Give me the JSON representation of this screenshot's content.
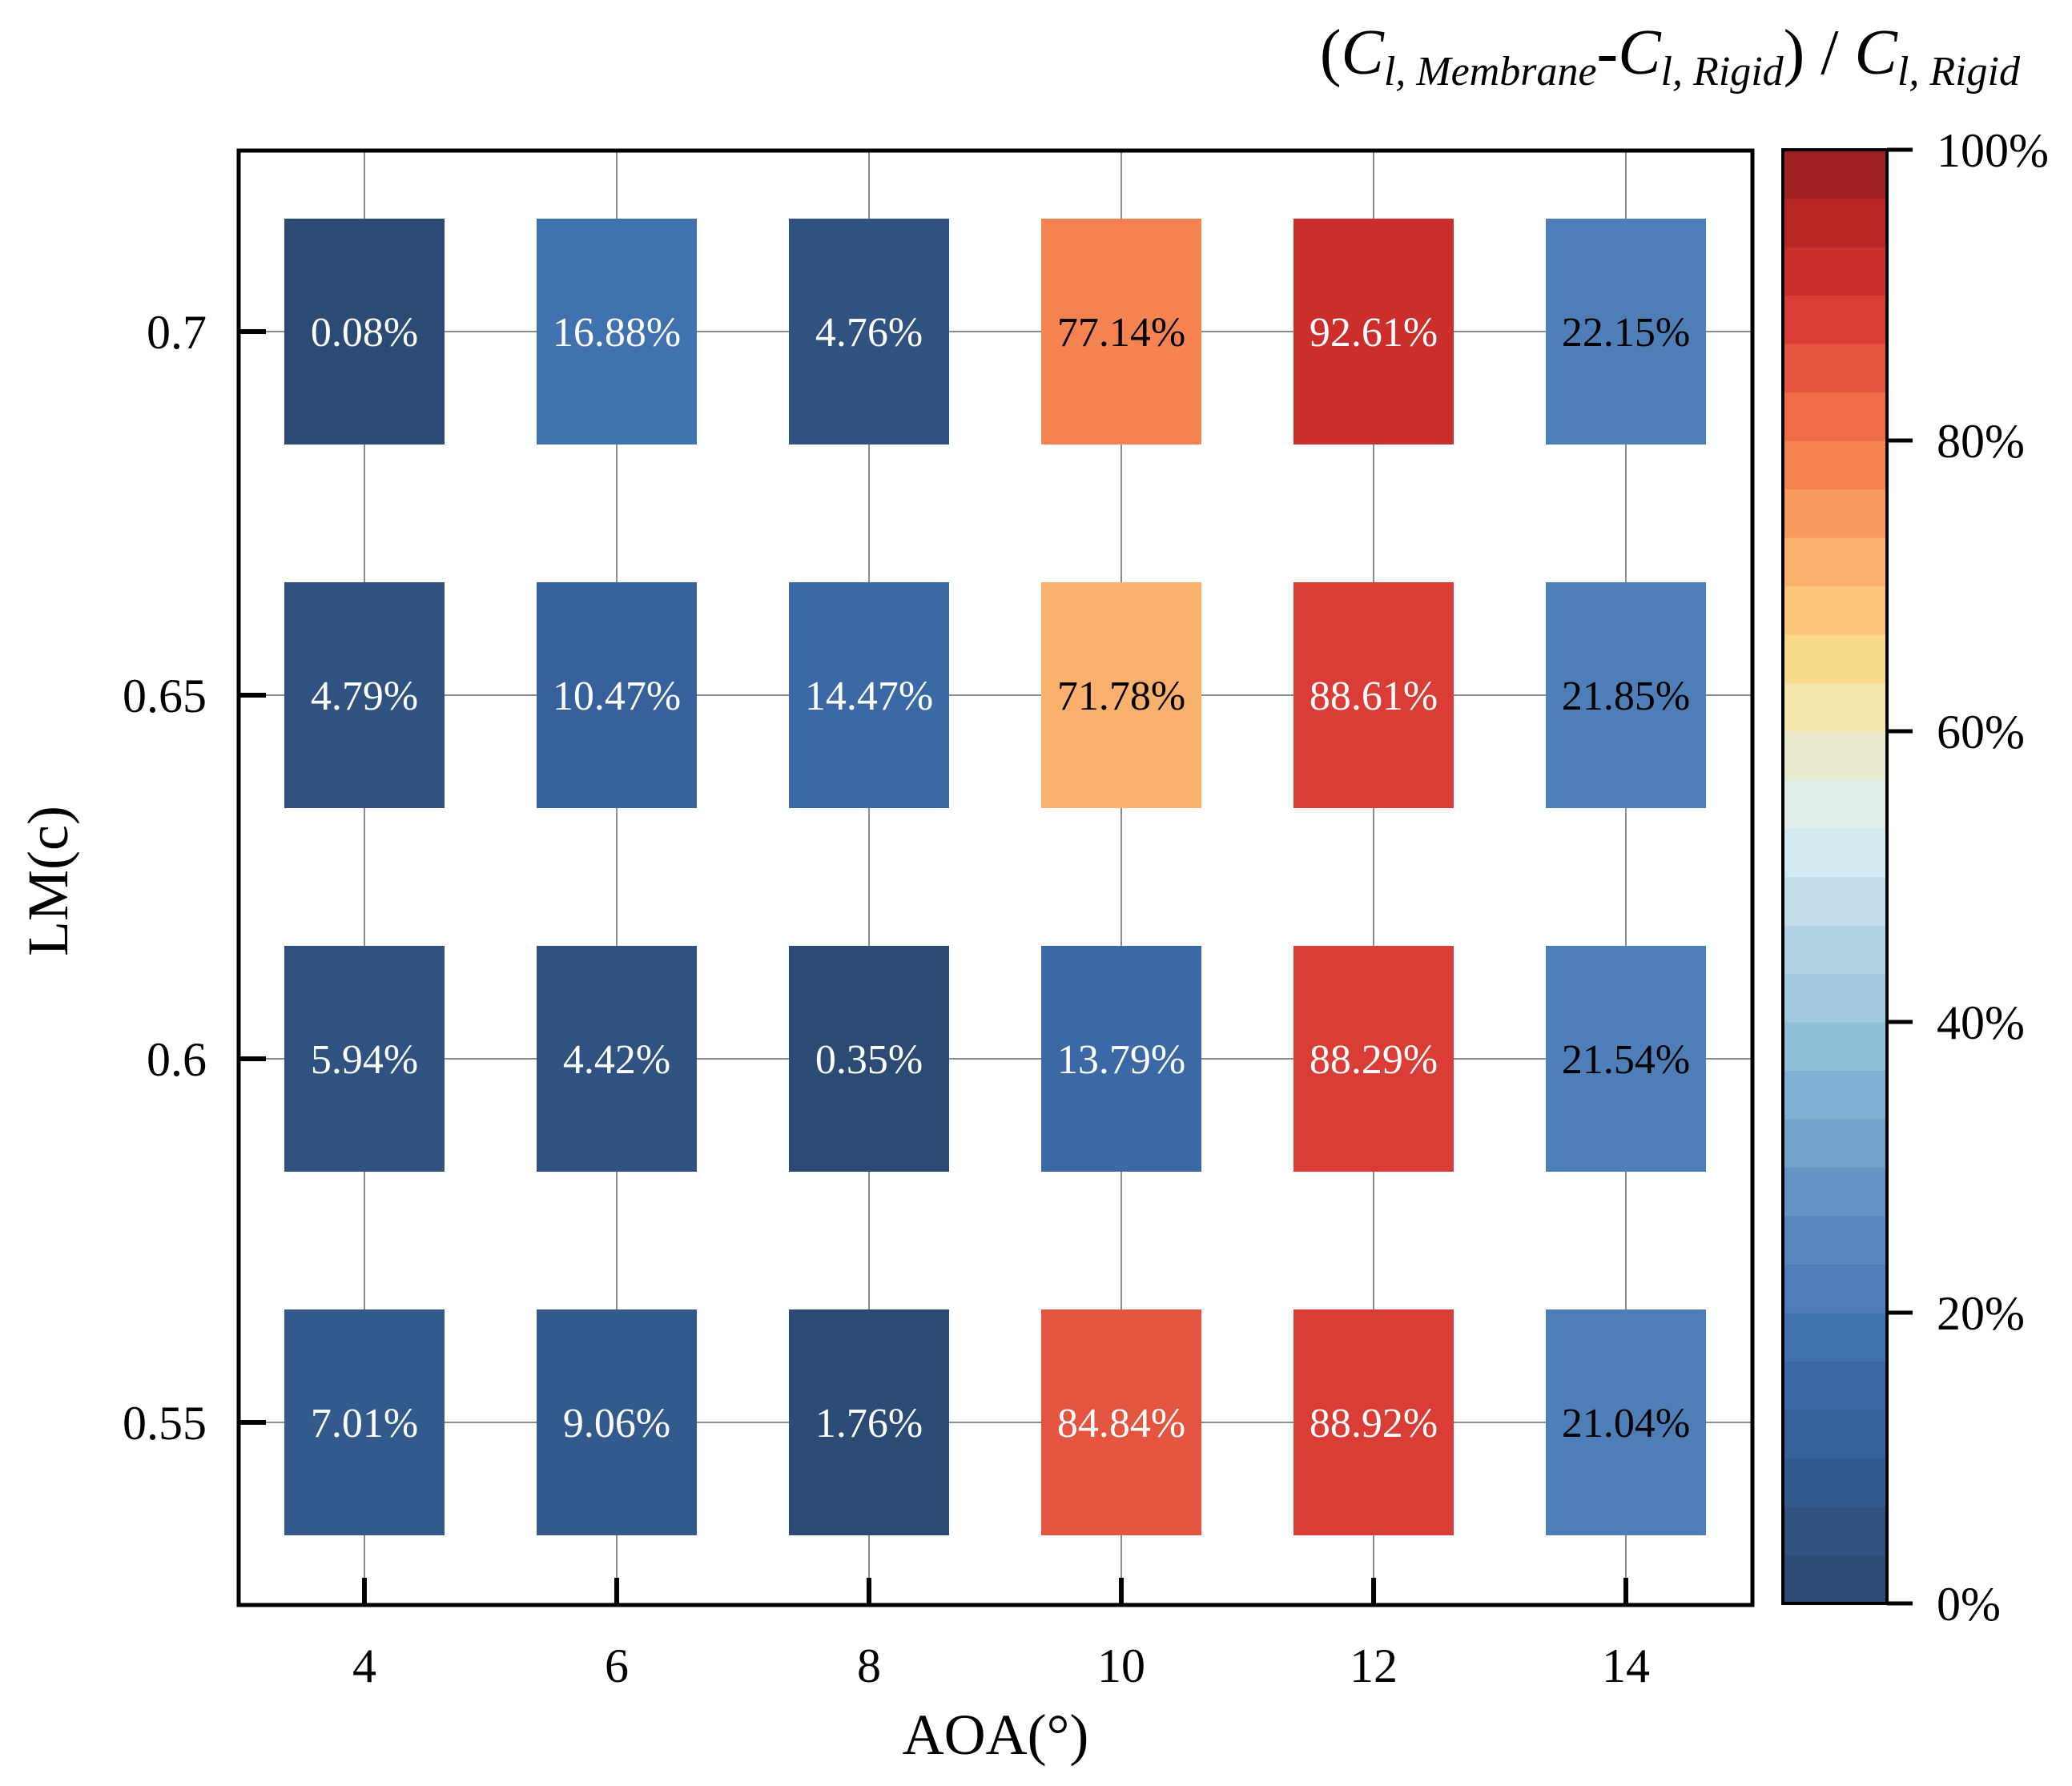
{
  "chart_data": {
    "type": "heatmap",
    "title": "",
    "xlabel": "AOA(°)",
    "ylabel": "LM(c)",
    "x_categories": [
      "4",
      "6",
      "8",
      "10",
      "12",
      "14"
    ],
    "y_categories": [
      "0.7",
      "0.65",
      "0.6",
      "0.55"
    ],
    "values": [
      [
        0.08,
        16.88,
        4.76,
        77.14,
        92.61,
        22.15
      ],
      [
        4.79,
        10.47,
        14.47,
        71.78,
        88.61,
        21.85
      ],
      [
        5.94,
        4.42,
        0.35,
        13.79,
        88.29,
        21.54
      ],
      [
        7.01,
        9.06,
        1.76,
        84.84,
        88.92,
        21.04
      ]
    ],
    "cell_labels": [
      [
        "0.08%",
        "16.88%",
        "4.76%",
        "77.14%",
        "92.61%",
        "22.15%"
      ],
      [
        "4.79%",
        "10.47%",
        "14.47%",
        "71.78%",
        "88.61%",
        "21.85%"
      ],
      [
        "5.94%",
        "4.42%",
        "0.35%",
        "13.79%",
        "88.29%",
        "21.54%"
      ],
      [
        "7.01%",
        "9.06%",
        "1.76%",
        "84.84%",
        "88.92%",
        "21.04%"
      ]
    ],
    "colorbar": {
      "title_parts": [
        "(",
        "C",
        "l, Membrane",
        "-",
        "C",
        "l, Rigid",
        ") / ",
        "C",
        "l, Rigid"
      ],
      "range": [
        0,
        100
      ],
      "tick_values": [
        0,
        20,
        40,
        60,
        80,
        100
      ],
      "tick_labels": [
        "0%",
        "20%",
        "40%",
        "60%",
        "80%",
        "100%"
      ],
      "levels": 30,
      "colors": [
        "#2c4b74",
        "#2f5281",
        "#335a8d",
        "#37619a",
        "#3b69a6",
        "#4072b0",
        "#4d7eb7",
        "#5888c0",
        "#6595c6",
        "#72a2cc",
        "#80b0d4",
        "#8fbcd9",
        "#a0c8df",
        "#b1d3e6",
        "#c3dfec",
        "#d3e9f1",
        "#e1edea",
        "#ebe9cd",
        "#f4e5ad",
        "#f9d98c",
        "#fbc57a",
        "#fbb16e",
        "#f99a5f",
        "#f58352",
        "#ee6c48",
        "#e45540",
        "#d93d35",
        "#cc2e2b",
        "#b82625",
        "#9e2020"
      ]
    },
    "grid": true
  }
}
